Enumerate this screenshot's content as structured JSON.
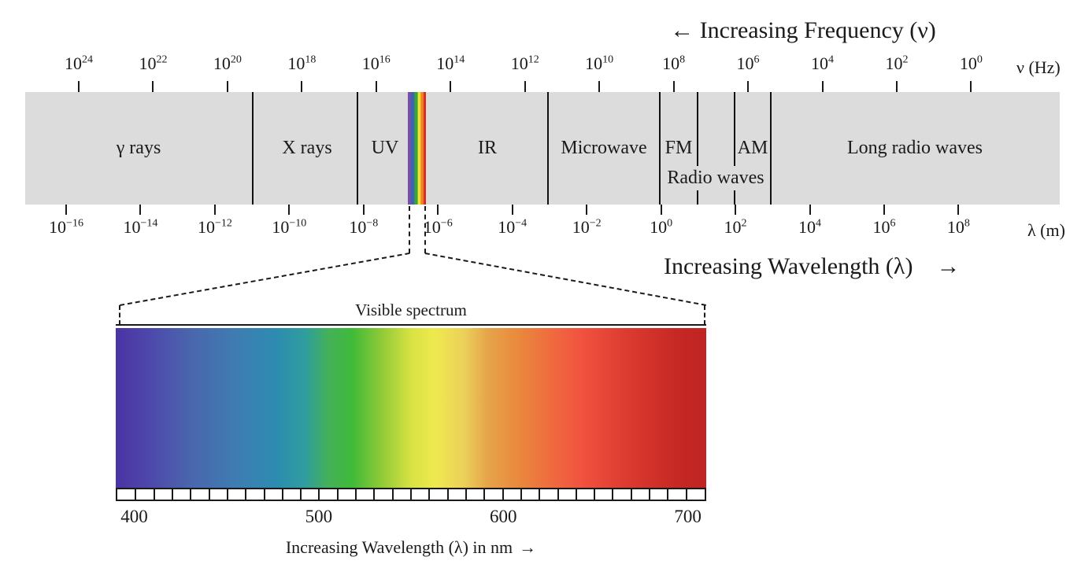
{
  "titles": {
    "frequency": "← Increasing Frequency (ν)",
    "wavelength_text": "Increasing Wavelength (λ)",
    "wavelength_arrow": "→"
  },
  "frequency_axis": {
    "unit": "ν (Hz)",
    "base": "10",
    "exponents": [
      "24",
      "22",
      "20",
      "18",
      "16",
      "14",
      "12",
      "10",
      "8",
      "6",
      "4",
      "2",
      "0"
    ]
  },
  "wavelength_axis": {
    "unit": "λ (m)",
    "base": "10",
    "exponents": [
      "−16",
      "−14",
      "−12",
      "−10",
      "−8",
      "−6",
      "−4",
      "−2",
      "0",
      "2",
      "4",
      "6",
      "8"
    ]
  },
  "spectrum_bands": {
    "regions": [
      "γ rays",
      "X rays",
      "UV",
      "IR",
      "Microwave",
      "FM",
      "AM",
      "Long radio waves"
    ],
    "radio_label": "Radio waves"
  },
  "visible_spectrum": {
    "label": "Visible spectrum",
    "tick_labels": [
      "400",
      "500",
      "600",
      "700"
    ],
    "caption": "Increasing Wavelength (λ) in nm",
    "caption_arrow": "→"
  },
  "colors": {
    "band_gray": "#dcdcdc",
    "line_black": "#1a1a1a",
    "violet": "#4b33a4",
    "green": "#3fba39",
    "yellow": "#eee94e",
    "red": "#c02423"
  }
}
